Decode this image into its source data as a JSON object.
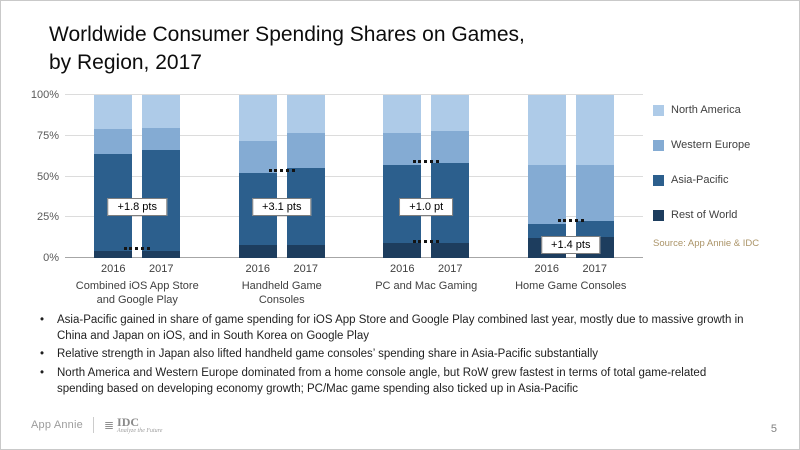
{
  "title": "Worldwide Consumer Spending Shares on Games,\nby Region, 2017",
  "chart_data": {
    "type": "bar",
    "stacked": true,
    "percent": true,
    "title": "Worldwide Consumer Spending Shares on Games, by Region, 2017",
    "ylim": [
      0,
      100
    ],
    "yticks": [
      "0%",
      "25%",
      "50%",
      "75%",
      "100%"
    ],
    "grid": true,
    "legend_position": "right",
    "legend": [
      "North America",
      "Western Europe",
      "Asia-Pacific",
      "Rest of World"
    ],
    "series_order_bottom_to_top": [
      "Rest of World",
      "Asia-Pacific",
      "Western Europe",
      "North America"
    ],
    "series_colors": {
      "North America": "#aecbe8",
      "Western Europe": "#84abd3",
      "Asia-Pacific": "#2c5f8d",
      "Rest of World": "#1d3d5e"
    },
    "groups": [
      {
        "label": "Combined iOS App Store and Google Play",
        "label_lines": "Combined iOS App Store\nand Google Play",
        "annotation": "+1.8 pts",
        "annotation_refers_to": "Asia-Pacific",
        "annotation_y_pct": 31,
        "connector_y_pcts": [
          5
        ],
        "bars": [
          {
            "year": "2016",
            "values": {
              "Rest of World": 4,
              "Asia-Pacific": 60,
              "Western Europe": 15,
              "North America": 21
            }
          },
          {
            "year": "2017",
            "values": {
              "Rest of World": 4,
              "Asia-Pacific": 62,
              "Western Europe": 14,
              "North America": 20
            }
          }
        ]
      },
      {
        "label": "Handheld Game Consoles",
        "label_lines": "Handheld Game\nConsoles",
        "annotation": "+3.1 pts",
        "annotation_refers_to": "Asia-Pacific",
        "annotation_y_pct": 31,
        "connector_y_pcts": [
          53
        ],
        "bars": [
          {
            "year": "2016",
            "values": {
              "Rest of World": 8,
              "Asia-Pacific": 44,
              "Western Europe": 20,
              "North America": 28
            }
          },
          {
            "year": "2017",
            "values": {
              "Rest of World": 8,
              "Asia-Pacific": 47,
              "Western Europe": 22,
              "North America": 23
            }
          }
        ]
      },
      {
        "label": "PC and Mac Gaming",
        "label_lines": "PC and Mac Gaming",
        "annotation": "+1.0 pt",
        "annotation_refers_to": "Asia-Pacific",
        "annotation_y_pct": 31,
        "connector_y_pcts": [
          58,
          9
        ],
        "bars": [
          {
            "year": "2016",
            "values": {
              "Rest of World": 9,
              "Asia-Pacific": 48,
              "Western Europe": 20,
              "North America": 23
            }
          },
          {
            "year": "2017",
            "values": {
              "Rest of World": 9,
              "Asia-Pacific": 49,
              "Western Europe": 20,
              "North America": 22
            }
          }
        ]
      },
      {
        "label": "Home Game Consoles",
        "label_lines": "Home Game Consoles",
        "annotation": "+1.4 pts",
        "annotation_refers_to": "Rest of World",
        "annotation_y_pct": 8,
        "connector_y_pcts": [
          22
        ],
        "bars": [
          {
            "year": "2016",
            "values": {
              "Rest of World": 12,
              "Asia-Pacific": 9,
              "Western Europe": 36,
              "North America": 43
            }
          },
          {
            "year": "2017",
            "values": {
              "Rest of World": 13,
              "Asia-Pacific": 10,
              "Western Europe": 34,
              "North America": 43
            }
          }
        ]
      }
    ],
    "source": "Source: App Annie & IDC"
  },
  "bullets": [
    "Asia-Pacific gained in share of game spending for iOS App Store and Google Play combined last year, mostly due to massive growth in China and Japan on iOS, and in South Korea on Google Play",
    "Relative strength in Japan also lifted handheld game consoles’ spending share in Asia-Pacific substantially",
    "North America and Western Europe dominated from a home console angle, but RoW grew fastest in terms of total game-related spending based on developing economy growth; PC/Mac game spending also ticked up in Asia-Pacific"
  ],
  "footer": {
    "appannie_label": "App Annie",
    "idc_label": "IDC",
    "idc_tagline": "Analyze the Future",
    "page_number": "5"
  }
}
